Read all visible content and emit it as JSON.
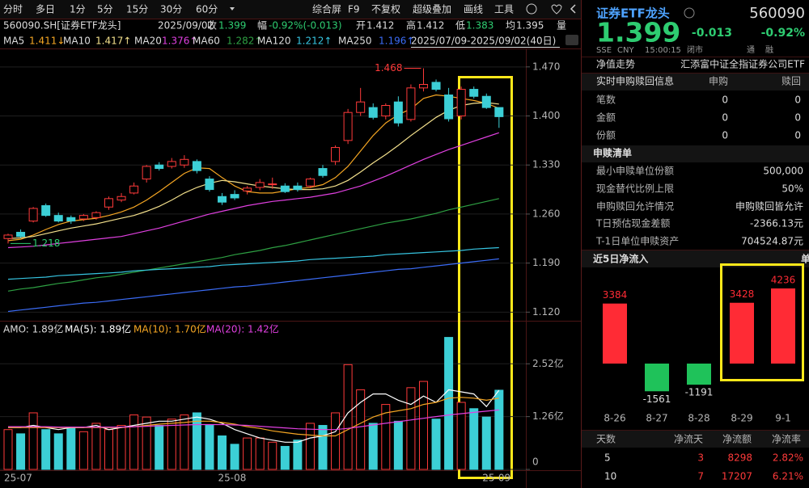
{
  "toolbar": {
    "periods": [
      "分时",
      "多日",
      "1分",
      "5分",
      "15分",
      "30分",
      "60分"
    ],
    "tools": [
      "综合屏",
      "F9",
      "不复权",
      "超级叠加",
      "画线",
      "工具"
    ]
  },
  "quote_bar": {
    "symbol": "560090.SH[证券ETF龙头]",
    "date": "2025/09/02",
    "close_label": "收",
    "close": "1.399",
    "change_label": "幅",
    "change": "-0.92%(-0.013)",
    "open_label": "开",
    "open": "1.412",
    "high_label": "高",
    "high": "1.412",
    "low_label": "低",
    "low": "1.383",
    "avg_label": "均",
    "avg": "1.395",
    "volume_label": "量"
  },
  "price_chart": {
    "type": "candlestick",
    "range_label": "2025/07/09-2025/09/02(40日)",
    "grid": true,
    "up_color": "#ff3a3a",
    "down_color": "#3ccfd6",
    "categories": [
      "25-07",
      null,
      null,
      null,
      null,
      null,
      null,
      null,
      null,
      null,
      null,
      null,
      null,
      null,
      null,
      null,
      null,
      "25-08",
      null,
      null,
      null,
      null,
      null,
      null,
      null,
      null,
      null,
      null,
      null,
      null,
      null,
      null,
      null,
      null,
      null,
      null,
      null,
      null,
      "25-09",
      null
    ],
    "open": [
      1.225,
      1.234,
      1.25,
      1.272,
      1.258,
      1.255,
      1.253,
      1.255,
      1.27,
      1.28,
      1.29,
      1.31,
      1.33,
      1.328,
      1.33,
      1.335,
      1.31,
      1.285,
      1.288,
      1.293,
      1.298,
      1.303,
      1.3,
      1.3,
      1.3,
      1.325,
      1.335,
      1.365,
      1.405,
      1.412,
      1.4,
      1.42,
      1.395,
      1.44,
      1.448,
      1.43,
      1.4,
      1.438,
      1.428,
      1.412
    ],
    "high": [
      1.232,
      1.238,
      1.27,
      1.275,
      1.262,
      1.258,
      1.26,
      1.264,
      1.285,
      1.29,
      1.305,
      1.33,
      1.334,
      1.34,
      1.344,
      1.338,
      1.314,
      1.29,
      1.294,
      1.3,
      1.31,
      1.312,
      1.304,
      1.305,
      1.312,
      1.33,
      1.358,
      1.41,
      1.44,
      1.418,
      1.418,
      1.428,
      1.445,
      1.468,
      1.452,
      1.44,
      1.442,
      1.442,
      1.432,
      1.412
    ],
    "low": [
      1.218,
      1.226,
      1.248,
      1.256,
      1.248,
      1.246,
      1.25,
      1.252,
      1.266,
      1.277,
      1.288,
      1.305,
      1.322,
      1.325,
      1.326,
      1.318,
      1.292,
      1.273,
      1.28,
      1.288,
      1.294,
      1.296,
      1.29,
      1.292,
      1.297,
      1.312,
      1.33,
      1.36,
      1.4,
      1.395,
      1.395,
      1.385,
      1.392,
      1.435,
      1.435,
      1.392,
      1.395,
      1.425,
      1.41,
      1.383
    ],
    "close": [
      1.23,
      1.228,
      1.268,
      1.258,
      1.25,
      1.25,
      1.258,
      1.262,
      1.282,
      1.285,
      1.3,
      1.328,
      1.325,
      1.335,
      1.338,
      1.322,
      1.295,
      1.277,
      1.283,
      1.297,
      1.305,
      1.303,
      1.292,
      1.295,
      1.31,
      1.315,
      1.355,
      1.405,
      1.42,
      1.398,
      1.415,
      1.39,
      1.44,
      1.445,
      1.438,
      1.396,
      1.438,
      1.428,
      1.412,
      1.399
    ],
    "series": [
      {
        "name": "MA5",
        "legend_value": "1.411↓",
        "color": "#f5a623",
        "values": [
          1.222,
          1.224,
          1.23,
          1.238,
          1.245,
          1.25,
          1.252,
          1.254,
          1.258,
          1.263,
          1.27,
          1.28,
          1.292,
          1.305,
          1.318,
          1.326,
          1.325,
          1.312,
          1.3,
          1.292,
          1.29,
          1.29,
          1.293,
          1.296,
          1.298,
          1.302,
          1.312,
          1.328,
          1.35,
          1.372,
          1.39,
          1.402,
          1.41,
          1.425,
          1.43,
          1.428,
          1.425,
          1.422,
          1.418,
          1.411
        ]
      },
      {
        "name": "MA10",
        "legend_value": "1.417↑",
        "color": "#f3e08c",
        "values": [
          1.225,
          1.226,
          1.228,
          1.232,
          1.236,
          1.24,
          1.243,
          1.246,
          1.25,
          1.254,
          1.258,
          1.264,
          1.271,
          1.28,
          1.29,
          1.298,
          1.304,
          1.308,
          1.306,
          1.303,
          1.3,
          1.298,
          1.296,
          1.295,
          1.295,
          1.296,
          1.3,
          1.308,
          1.32,
          1.333,
          1.345,
          1.358,
          1.372,
          1.385,
          1.398,
          1.408,
          1.415,
          1.418,
          1.419,
          1.417
        ]
      },
      {
        "name": "MA20",
        "legend_value": "1.376↑",
        "color": "#e040e0",
        "values": [
          1.212,
          1.213,
          1.214,
          1.216,
          1.218,
          1.22,
          1.222,
          1.224,
          1.226,
          1.228,
          1.232,
          1.236,
          1.24,
          1.245,
          1.25,
          1.255,
          1.26,
          1.264,
          1.268,
          1.272,
          1.275,
          1.278,
          1.28,
          1.282,
          1.284,
          1.287,
          1.29,
          1.295,
          1.3,
          1.307,
          1.314,
          1.322,
          1.33,
          1.338,
          1.345,
          1.352,
          1.358,
          1.364,
          1.37,
          1.376
        ]
      },
      {
        "name": "MA60",
        "legend_value": "1.282↑",
        "color": "#2ea043",
        "values": [
          1.15,
          1.153,
          1.155,
          1.158,
          1.161,
          1.163,
          1.166,
          1.169,
          1.171,
          1.174,
          1.177,
          1.18,
          1.183,
          1.186,
          1.189,
          1.192,
          1.195,
          1.198,
          1.202,
          1.205,
          1.208,
          1.212,
          1.215,
          1.219,
          1.223,
          1.227,
          1.231,
          1.235,
          1.239,
          1.243,
          1.247,
          1.25,
          1.253,
          1.257,
          1.261,
          1.266,
          1.27,
          1.274,
          1.278,
          1.282
        ]
      },
      {
        "name": "MA120",
        "legend_value": "1.212↑",
        "color": "#36c4e0",
        "values": [
          1.167,
          1.168,
          1.169,
          1.17,
          1.172,
          1.173,
          1.174,
          1.175,
          1.176,
          1.177,
          1.179,
          1.18,
          1.181,
          1.182,
          1.183,
          1.184,
          1.185,
          1.187,
          1.188,
          1.189,
          1.19,
          1.191,
          1.192,
          1.193,
          1.195,
          1.196,
          1.197,
          1.198,
          1.199,
          1.2,
          1.202,
          1.203,
          1.204,
          1.205,
          1.206,
          1.207,
          1.208,
          1.21,
          1.211,
          1.212
        ]
      },
      {
        "name": "MA250",
        "legend_value": "1.196↑",
        "color": "#3b6cf6",
        "values": [
          1.121,
          1.123,
          1.125,
          1.127,
          1.129,
          1.131,
          1.133,
          1.134,
          1.136,
          1.138,
          1.14,
          1.142,
          1.144,
          1.146,
          1.148,
          1.15,
          1.152,
          1.154,
          1.156,
          1.157,
          1.159,
          1.161,
          1.163,
          1.165,
          1.167,
          1.169,
          1.171,
          1.173,
          1.175,
          1.177,
          1.179,
          1.181,
          1.182,
          1.184,
          1.186,
          1.188,
          1.19,
          1.192,
          1.194,
          1.196
        ]
      }
    ],
    "ylim": [
      1.11,
      1.494
    ],
    "yticks": [
      {
        "value": 1.47,
        "label": "1.470"
      },
      {
        "value": 1.4,
        "label": "1.400"
      },
      {
        "value": 1.33,
        "label": "1.330"
      },
      {
        "value": 1.26,
        "label": "1.260"
      },
      {
        "value": 1.19,
        "label": "1.190"
      },
      {
        "value": 1.12,
        "label": "1.120"
      }
    ]
  },
  "volume_chart": {
    "type": "bar",
    "title": "AMO: 1.89亿",
    "grid": true,
    "values": [
      0.95,
      0.85,
      1.35,
      0.95,
      0.85,
      1.0,
      0.9,
      1.1,
      0.95,
      1.05,
      1.3,
      1.25,
      1.05,
      1.2,
      1.3,
      1.35,
      1.05,
      0.8,
      0.6,
      0.75,
      0.75,
      0.65,
      0.55,
      0.7,
      1.1,
      1.05,
      1.35,
      2.5,
      1.9,
      1.1,
      1.55,
      1.15,
      1.95,
      2.1,
      1.2,
      3.15,
      1.6,
      1.45,
      1.25,
      1.89
    ],
    "series": [
      {
        "name": "MA(5): 1.89亿",
        "color": "#ffffff",
        "values": [
          1.0,
          1.0,
          1.05,
          1.0,
          0.95,
          1.0,
          1.0,
          1.05,
          0.95,
          1.0,
          1.05,
          1.1,
          1.15,
          1.15,
          1.2,
          1.25,
          1.2,
          1.1,
          0.95,
          0.85,
          0.75,
          0.7,
          0.65,
          0.65,
          0.75,
          0.8,
          0.9,
          1.35,
          1.6,
          1.8,
          1.8,
          1.65,
          1.55,
          1.75,
          1.6,
          1.9,
          1.85,
          1.8,
          1.5,
          1.89
        ]
      },
      {
        "name": "MA(10): 1.70亿",
        "color": "#f5a623",
        "values": [
          1.0,
          1.0,
          1.0,
          1.0,
          1.0,
          1.0,
          1.0,
          1.0,
          1.0,
          1.0,
          1.02,
          1.05,
          1.08,
          1.1,
          1.12,
          1.15,
          1.15,
          1.12,
          1.08,
          1.02,
          0.98,
          0.92,
          0.88,
          0.84,
          0.82,
          0.8,
          0.8,
          0.95,
          1.1,
          1.25,
          1.35,
          1.4,
          1.45,
          1.55,
          1.6,
          1.7,
          1.72,
          1.7,
          1.65,
          1.7
        ]
      },
      {
        "name": "MA(20): 1.42亿",
        "color": "#e040e0",
        "values": [
          1.02,
          1.02,
          1.02,
          1.02,
          1.01,
          1.01,
          1.01,
          1.01,
          1.01,
          1.01,
          1.02,
          1.03,
          1.04,
          1.05,
          1.06,
          1.07,
          1.07,
          1.07,
          1.06,
          1.05,
          1.03,
          1.01,
          0.99,
          0.97,
          0.96,
          0.95,
          0.95,
          0.98,
          1.02,
          1.06,
          1.1,
          1.14,
          1.18,
          1.22,
          1.26,
          1.3,
          1.33,
          1.36,
          1.39,
          1.42
        ]
      }
    ],
    "ylim": [
      0,
      3.2
    ],
    "yticks": [
      {
        "value": 2.52,
        "label": "2.52亿"
      },
      {
        "value": 1.26,
        "label": "1.26亿"
      },
      0
    ]
  },
  "etf_panel": {
    "name": "证券ETF龙头",
    "code": "560090",
    "price": "1.399",
    "change": "-0.013",
    "change_pct": "-0.92%",
    "meta": [
      "SSE",
      "CNY",
      "15:00:15",
      "闭市"
    ],
    "badges": [
      "通",
      "融"
    ],
    "nav_label": "净值走势",
    "fund_name": "汇添富中证全指证券公司ETF",
    "realtime": {
      "title": "实时申购赎回信息",
      "columns": [
        "申购",
        "赎回"
      ],
      "rows": [
        [
          "笔数",
          "0",
          "0"
        ],
        [
          "金额",
          "0",
          "0"
        ],
        [
          "份额",
          "0",
          "0"
        ]
      ]
    },
    "list": {
      "title": "申赎清单",
      "rows": [
        [
          "最小申赎单位份额",
          "500,000"
        ],
        [
          "现金替代比例上限",
          "50%"
        ],
        [
          "申购赎回允许情况",
          "申购赎回皆允许"
        ],
        [
          "T日预估现金差额",
          "-2366.13元"
        ],
        [
          "T-1日单位申赎资产",
          "704524.87元"
        ]
      ]
    },
    "flow_chart": {
      "type": "bar",
      "title": "近5日净流入",
      "unit": "单位(万元)",
      "categories": [
        "8-26",
        "8-27",
        "8-28",
        "8-29",
        "9-1"
      ],
      "values": [
        3384,
        -1561,
        -1191,
        3428,
        4236
      ],
      "up_color": "#ff2b35",
      "down_color": "#1fc25a"
    },
    "flow_table": {
      "columns": [
        "天数",
        "净流天",
        "净流额",
        "净流率"
      ],
      "rows": [
        [
          "5",
          "3",
          "8298",
          "2.82%"
        ],
        [
          "10",
          "7",
          "17207",
          "6.21%"
        ]
      ]
    }
  }
}
